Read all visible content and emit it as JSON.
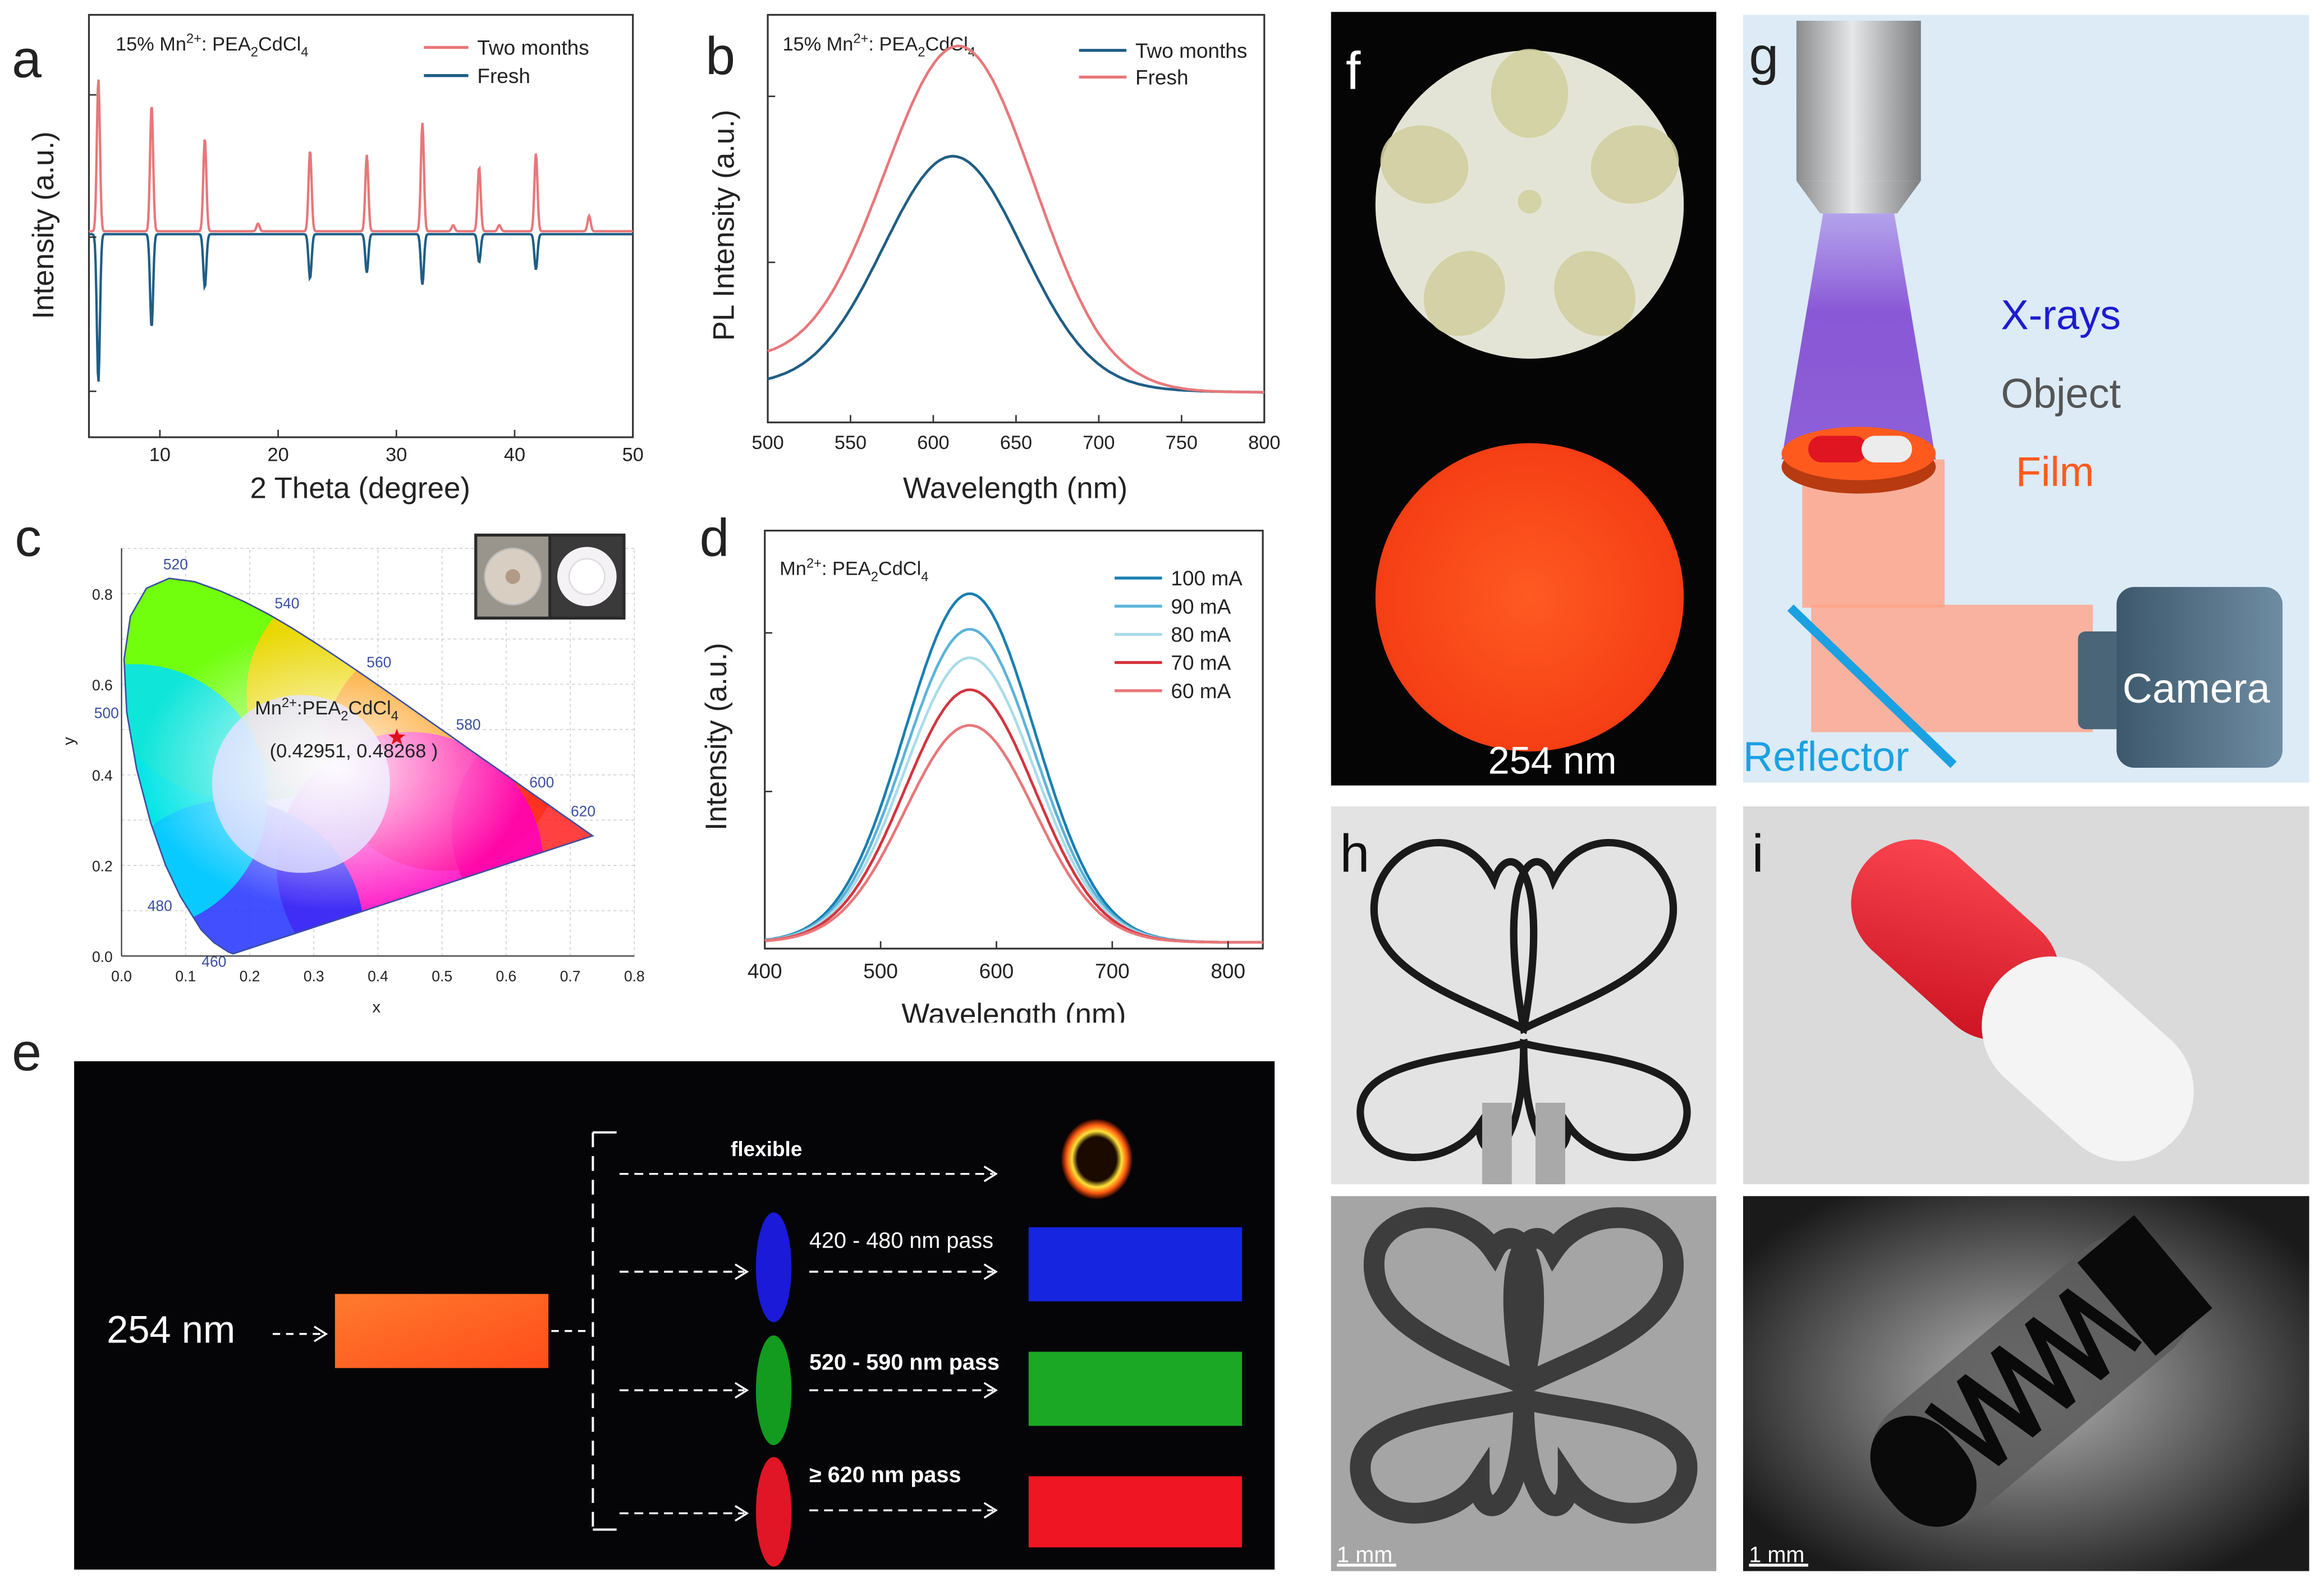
{
  "panel_labels": [
    "a",
    "b",
    "c",
    "d",
    "e",
    "f",
    "g",
    "h",
    "i"
  ],
  "colors": {
    "red_trace": "#E8777A",
    "blue_trace": "#1F5E86",
    "film_orange": "#FF5A1E",
    "xray_purple": "#7B3FD0",
    "schematic_bg": "#DCEBF6",
    "reflector": "#1BA1E2",
    "camera": "#5C7A92"
  },
  "chart_data": [
    {
      "panel": "a",
      "type": "line",
      "title": "15% Mn",
      "title_sup": "2+",
      "title_rest": ": PEA",
      "title_sub": "2",
      "title_end": "CdCl",
      "title_sub2": "4",
      "xlabel": "2 Theta (degree)",
      "ylabel": "Intensity (a.u.)",
      "xlim": [
        4,
        50
      ],
      "xticks": [
        "10",
        "20",
        "30",
        "40",
        "50"
      ],
      "xtick_values": [
        10,
        20,
        30,
        40,
        50
      ],
      "series": [
        {
          "name": "Two months",
          "color": "#E8777A",
          "peaks": [
            [
              4.8,
              1.0
            ],
            [
              9.3,
              0.83
            ],
            [
              13.8,
              0.61
            ],
            [
              18.3,
              0.05
            ],
            [
              22.7,
              0.53
            ],
            [
              27.5,
              0.5
            ],
            [
              32.2,
              0.71
            ],
            [
              34.8,
              0.04
            ],
            [
              37.0,
              0.42
            ],
            [
              38.7,
              0.04
            ],
            [
              41.8,
              0.51
            ],
            [
              46.3,
              0.1
            ]
          ]
        },
        {
          "name": "Fresh",
          "color": "#1F5E86",
          "peaks": [
            [
              4.8,
              -1.0
            ],
            [
              9.3,
              -0.63
            ],
            [
              13.8,
              -0.36
            ],
            [
              22.7,
              -0.3
            ],
            [
              27.5,
              -0.26
            ],
            [
              32.2,
              -0.34
            ],
            [
              37.0,
              -0.19
            ],
            [
              41.8,
              -0.24
            ]
          ]
        }
      ]
    },
    {
      "panel": "b",
      "type": "line",
      "title": "15% Mn",
      "title_sup": "2+",
      "title_rest": ": PEA",
      "title_sub": "2",
      "title_end": "CdCl",
      "title_sub2": "4",
      "xlabel": "Wavelength (nm)",
      "ylabel": "PL Intensity (a.u.)",
      "xlim": [
        500,
        800
      ],
      "xticks": [
        "500",
        "550",
        "600",
        "650",
        "700",
        "750",
        "800"
      ],
      "xtick_values": [
        500,
        550,
        600,
        650,
        700,
        750,
        800
      ],
      "series": [
        {
          "name": "Two months",
          "color": "#1F5E86",
          "peak_nm": 612,
          "peak": 0.68,
          "width": 42
        },
        {
          "name": "Fresh",
          "color": "#E8777A",
          "peak_nm": 616,
          "peak": 0.98,
          "width": 45
        }
      ]
    },
    {
      "panel": "c",
      "type": "scatter",
      "xlabel": "x",
      "ylabel": "y",
      "xlim": [
        0.0,
        0.8
      ],
      "ylim": [
        0.0,
        0.9
      ],
      "xticks": [
        "0.0",
        "0.1",
        "0.2",
        "0.3",
        "0.4",
        "0.5",
        "0.6",
        "0.7",
        "0.8"
      ],
      "yticks": [
        "0.0",
        "0.2",
        "0.4",
        "0.6",
        "0.8"
      ],
      "locus_labels": [
        "460",
        "480",
        "500",
        "520",
        "540",
        "560",
        "580",
        "600",
        "620"
      ],
      "point_label_1": "Mn",
      "point_label_sup": "2+",
      "point_label_2": ":PEA",
      "point_label_sub": "2",
      "point_label_3": "CdCl",
      "point_label_sub2": "4",
      "point_coords": "(0.42951, 0.48268 )",
      "point": {
        "x": 0.42951,
        "y": 0.48268
      }
    },
    {
      "panel": "d",
      "type": "line",
      "title": "Mn",
      "title_sup": "2+",
      "title_rest": ": PEA",
      "title_sub": "2",
      "title_end": "CdCl",
      "title_sub2": "4",
      "xlabel": "Wavelength (nm)",
      "ylabel": "Intensity (a.u.)",
      "xlim": [
        400,
        830
      ],
      "xticks": [
        "400",
        "500",
        "600",
        "700",
        "800"
      ],
      "xtick_values": [
        400,
        500,
        600,
        700,
        800
      ],
      "series": [
        {
          "name": "100 mA",
          "color": "#1A7FB0",
          "peak": 0.98
        },
        {
          "name": "90 mA",
          "color": "#5CB3DA",
          "peak": 0.88
        },
        {
          "name": "80 mA",
          "color": "#A9DCE9",
          "peak": 0.8
        },
        {
          "name": "70 mA",
          "color": "#D4343E",
          "peak": 0.71
        },
        {
          "name": "60 mA",
          "color": "#E8777A",
          "peak": 0.61
        }
      ]
    }
  ],
  "panel_e": {
    "excitation": "254 nm",
    "flexible": "flexible",
    "filters": [
      "420 - 480 nm pass",
      "520 - 590 nm pass",
      "≥ 620 nm pass"
    ]
  },
  "panel_f": {
    "label": "254 nm"
  },
  "panel_g": {
    "xrays": "X-rays",
    "object": "Object",
    "film": "Film",
    "camera": "Camera",
    "reflector": "Reflector"
  },
  "scale_bars": {
    "h": "1 mm",
    "i": "1 mm"
  }
}
